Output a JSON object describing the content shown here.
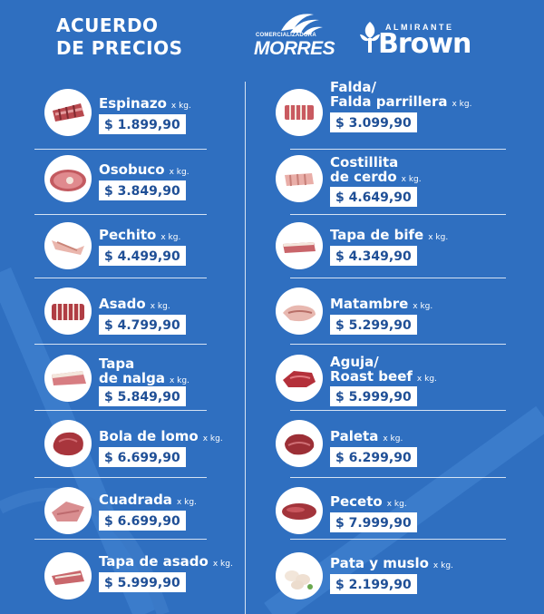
{
  "header": {
    "title_line1": "ACUERDO",
    "title_line2": "DE PRECIOS",
    "morres_small": "COMERCIALIZADORA",
    "morres_big": "MORRES",
    "brown_small": "ALMIRANTE",
    "brown_big": "Brown"
  },
  "left": [
    {
      "name": "Espinazo",
      "unit": "x kg.",
      "price": "$ 1.899,90",
      "icon": "spine-cut-icon"
    },
    {
      "name": "Osobuco",
      "unit": "x kg.",
      "price": "$ 3.849,90",
      "icon": "osobuco-icon"
    },
    {
      "name": "Pechito",
      "unit": "x kg.",
      "price": "$ 4.499,90",
      "icon": "pechito-icon"
    },
    {
      "name": "Asado",
      "unit": "x kg.",
      "price": "$ 4.799,90",
      "icon": "asado-ribs-icon"
    },
    {
      "name1": "Tapa",
      "name2": "de nalga",
      "unit": "x kg.",
      "price": "$ 5.849,90",
      "icon": "tapa-nalga-icon"
    },
    {
      "name": "Bola de lomo",
      "unit": "x kg.",
      "price": "$ 6.699,90",
      "icon": "bola-lomo-icon"
    },
    {
      "name": "Cuadrada",
      "unit": "x kg.",
      "price": "$ 6.699,90",
      "icon": "cuadrada-icon"
    },
    {
      "name": "Tapa de asado",
      "unit": "x kg.",
      "price": "$ 5.999,90",
      "icon": "tapa-asado-icon"
    }
  ],
  "right": [
    {
      "name1": "Falda/",
      "name2": "Falda parrillera",
      "unit": "x kg.",
      "price": "$ 3.099,90",
      "icon": "falda-icon"
    },
    {
      "name1": "Costillita",
      "name2": "de cerdo",
      "unit": "x kg.",
      "price": "$ 4.649,90",
      "icon": "costillita-cerdo-icon"
    },
    {
      "name": "Tapa de bife",
      "unit": "x kg.",
      "price": "$ 4.349,90",
      "icon": "tapa-bife-icon"
    },
    {
      "name": "Matambre",
      "unit": "x kg.",
      "price": "$ 5.299,90",
      "icon": "matambre-icon"
    },
    {
      "name1": "Aguja/",
      "name2": "Roast beef",
      "unit": "x kg.",
      "price": "$ 5.999,90",
      "icon": "roast-beef-icon"
    },
    {
      "name": "Paleta",
      "unit": "x kg.",
      "price": "$ 6.299,90",
      "icon": "paleta-icon"
    },
    {
      "name": "Peceto",
      "unit": "x kg.",
      "price": "$ 7.999,90",
      "icon": "peceto-icon"
    },
    {
      "name": "Pata y muslo",
      "unit": "x kg.",
      "price": "$ 2.199,90",
      "icon": "chicken-legs-icon"
    }
  ],
  "colors": {
    "background": "#2f6fc0",
    "price_text": "#1f4f96",
    "meat_red": "#b8484e",
    "meat_pink": "#e39a9c",
    "fat": "#f3e6dc"
  }
}
